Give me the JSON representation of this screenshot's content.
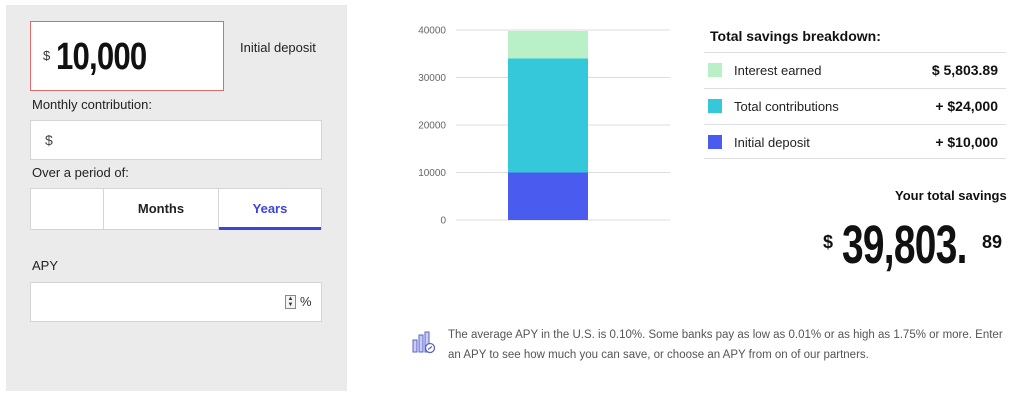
{
  "inputs": {
    "currency_symbol": "$",
    "initial_deposit_value": "10,000",
    "initial_deposit_label": "Initial deposit",
    "monthly_label": "Monthly contribution:",
    "monthly_currency": "$",
    "period_label": "Over a period of:",
    "period_options": [
      "",
      "Months",
      "Years"
    ],
    "period_selected": "Years",
    "apy_label": "APY",
    "apy_unit": "%"
  },
  "chart_data": {
    "type": "bar",
    "stacked": true,
    "categories": [
      ""
    ],
    "series": [
      {
        "name": "Initial deposit",
        "values": [
          10000
        ],
        "color": "#4a5bef"
      },
      {
        "name": "Total contributions",
        "values": [
          24000
        ],
        "color": "#34c8da"
      },
      {
        "name": "Interest earned",
        "values": [
          5803.89
        ],
        "color": "#b9f0c8"
      }
    ],
    "y_ticks": [
      "0",
      "10000",
      "20000",
      "30000",
      "40000"
    ],
    "ylim": [
      0,
      40000
    ],
    "grid": true
  },
  "breakdown": {
    "title": "Total savings breakdown:",
    "rows": [
      {
        "name": "Interest earned",
        "amount": "$ 5,803.89",
        "color": "#b9f0c8"
      },
      {
        "name": "Total contributions",
        "amount": "+ $24,000",
        "color": "#34c8da"
      },
      {
        "name": "Initial deposit",
        "amount": "+ $10,000",
        "color": "#4a5bef"
      }
    ],
    "total_label": "Your total savings",
    "total_currency": "$",
    "total_whole": "39,803.",
    "total_cents": "89"
  },
  "note": {
    "icon": "bar-chart-icon",
    "text": "The average APY in the U.S. is 0.10%. Some banks pay as low as 0.01% or as high as 1.75% or more. Enter an APY to see how much you can save, or choose an APY from on of our partners."
  }
}
